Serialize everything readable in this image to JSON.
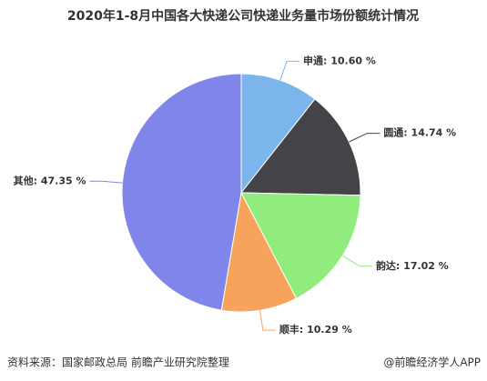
{
  "chart_data": {
    "type": "pie",
    "title": "2020年1-8月中国各大快递公司快递业务量市场份额统计情况",
    "values": [
      10.6,
      14.74,
      17.02,
      10.29,
      47.35
    ],
    "value_labels": [
      "申通: 10.60 %",
      "圆通: 14.74 %",
      "韵达: 17.02 %",
      "顺丰: 10.29 %",
      "其他: 47.35 %"
    ],
    "colors": [
      "#7cb5ec",
      "#434348",
      "#90ed7d",
      "#f7a35c",
      "#8085e9"
    ]
  },
  "footer": {
    "source": "资料来源：国家邮政总局 前瞻产业研究院整理",
    "brand": "@前瞻经济学人APP"
  }
}
